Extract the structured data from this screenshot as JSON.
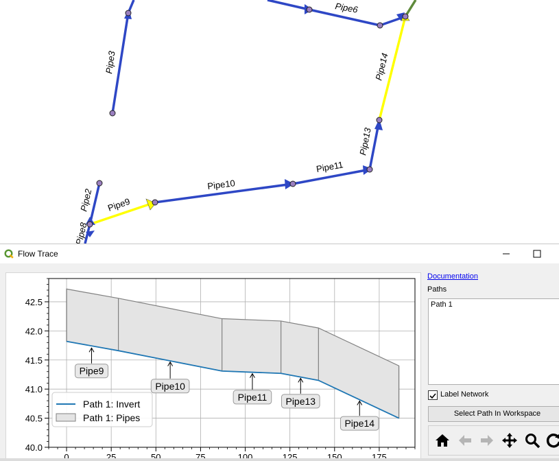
{
  "map": {
    "pipe_labels": [
      "Pipe6",
      "Pipe3",
      "Pipe14",
      "Pipe13",
      "Pipe11",
      "Pipe10",
      "Pipe9",
      "Pipe2",
      "Pipe8"
    ],
    "colors": {
      "pipe": "#2e47c5",
      "selected_path": "#ffff00",
      "other_pipe": "#5f8a3b",
      "node": "#9a7fbf"
    }
  },
  "window": {
    "title": "Flow Trace",
    "icon": "qgis-icon",
    "controls": [
      "minimize-icon",
      "maximize-icon"
    ]
  },
  "sidebar": {
    "documentation_link": "Documentation",
    "paths_label": "Paths",
    "paths": [
      "Path 1"
    ],
    "label_network": {
      "text": "Label Network",
      "checked": true
    },
    "select_path_button": "Select Path In Workspace",
    "toolbar_icons": [
      "home-icon",
      "back-arrow-icon",
      "forward-arrow-icon",
      "pan-icon",
      "zoom-icon",
      "refresh-icon"
    ]
  },
  "chart_data": {
    "type": "area",
    "xlim": [
      -10,
      195
    ],
    "ylim": [
      40.0,
      42.9
    ],
    "x_ticks": [
      0,
      25,
      50,
      75,
      100,
      125,
      150,
      175
    ],
    "x_tick_labels": [
      "0",
      "25",
      "50",
      "75",
      "100",
      "125",
      "150",
      "175"
    ],
    "y_ticks": [
      40.0,
      40.5,
      41.0,
      41.5,
      42.0,
      42.5
    ],
    "y_tick_labels": [
      "40.0",
      "40.5",
      "41.0",
      "41.5",
      "42.0",
      "42.5"
    ],
    "grid": true,
    "legend_position": "lower-left",
    "legend": [
      "Path 1: Invert",
      "Path 1: Pipes"
    ],
    "colors": {
      "invert": "#1f77b4",
      "pipes_fill": "#e4e4e4",
      "pipes_edge": "#808080"
    },
    "series": [
      {
        "name": "Path 1: Invert",
        "x": [
          0,
          29,
          87,
          120,
          141,
          186
        ],
        "y": [
          41.82,
          41.66,
          41.31,
          41.27,
          41.15,
          40.5
        ]
      },
      {
        "name": "Path 1: Pipes",
        "x": [
          0,
          29,
          87,
          120,
          141,
          186
        ],
        "y": [
          42.72,
          42.56,
          42.21,
          42.17,
          42.05,
          41.4
        ]
      }
    ],
    "annotations": [
      {
        "text": "Pipe9",
        "x": 14,
        "y_arrow": 41.73,
        "y_text": 41.3
      },
      {
        "text": "Pipe10",
        "x": 58,
        "y_arrow": 41.49,
        "y_text": 41.04
      },
      {
        "text": "Pipe11",
        "x": 104,
        "y_arrow": 41.29,
        "y_text": 40.85
      },
      {
        "text": "Pipe13",
        "x": 131,
        "y_arrow": 41.21,
        "y_text": 40.78
      },
      {
        "text": "Pipe14",
        "x": 164,
        "y_arrow": 40.82,
        "y_text": 40.4
      }
    ]
  }
}
